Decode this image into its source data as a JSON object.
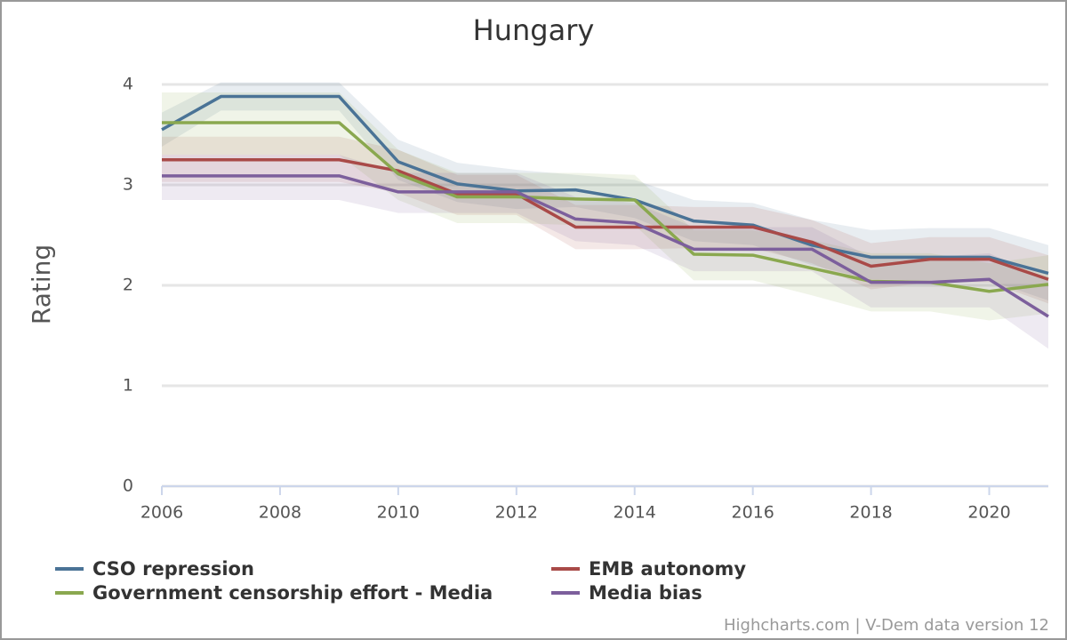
{
  "chart_data": {
    "type": "line",
    "title": "Hungary",
    "y_label": "Rating",
    "credits": "Highcharts.com | V-Dem data version 12",
    "x": [
      2006,
      2007,
      2008,
      2009,
      2010,
      2011,
      2012,
      2013,
      2014,
      2015,
      2016,
      2017,
      2018,
      2019,
      2020,
      2021
    ],
    "xlim": [
      2006,
      2021
    ],
    "xticks": [
      2006,
      2008,
      2010,
      2012,
      2014,
      2016,
      2018,
      2020
    ],
    "ylim": [
      0,
      4
    ],
    "yticks": [
      0,
      1,
      2,
      3,
      4
    ],
    "grid": true,
    "series": [
      {
        "name": "CSO repression",
        "color": "#4a7396",
        "values": [
          3.55,
          3.88,
          3.88,
          3.88,
          3.23,
          3.01,
          2.94,
          2.95,
          2.85,
          2.64,
          2.6,
          2.4,
          2.28,
          2.28,
          2.28,
          2.12
        ],
        "high": [
          3.72,
          4.02,
          4.02,
          4.02,
          3.45,
          3.22,
          3.15,
          3.1,
          3.05,
          2.85,
          2.82,
          2.65,
          2.55,
          2.57,
          2.57,
          2.4
        ],
        "low": [
          3.38,
          3.74,
          3.74,
          3.74,
          3.05,
          2.83,
          2.76,
          2.78,
          2.67,
          2.44,
          2.4,
          2.2,
          2.06,
          2.05,
          2.05,
          1.85
        ]
      },
      {
        "name": "EMB autonomy",
        "color": "#a94a48",
        "values": [
          3.25,
          3.25,
          3.25,
          3.25,
          3.14,
          2.91,
          2.91,
          2.58,
          2.58,
          2.58,
          2.58,
          2.43,
          2.19,
          2.26,
          2.26,
          2.06
        ],
        "high": [
          3.48,
          3.48,
          3.48,
          3.48,
          3.35,
          3.1,
          3.1,
          2.8,
          2.8,
          2.78,
          2.78,
          2.65,
          2.42,
          2.48,
          2.48,
          2.3
        ],
        "low": [
          3.03,
          3.03,
          3.03,
          3.03,
          2.92,
          2.7,
          2.7,
          2.36,
          2.36,
          2.37,
          2.37,
          2.22,
          1.96,
          2.03,
          2.03,
          1.82
        ]
      },
      {
        "name": "Government censorship effort - Media",
        "color": "#8aa84f",
        "values": [
          3.62,
          3.62,
          3.62,
          3.62,
          3.11,
          2.88,
          2.88,
          2.86,
          2.85,
          2.31,
          2.3,
          2.17,
          2.04,
          2.03,
          1.94,
          2.01
        ],
        "high": [
          3.92,
          3.92,
          3.92,
          3.92,
          3.35,
          3.12,
          3.12,
          3.12,
          3.1,
          2.55,
          2.55,
          2.45,
          2.32,
          2.32,
          2.22,
          2.3
        ],
        "low": [
          3.3,
          3.3,
          3.3,
          3.3,
          2.85,
          2.62,
          2.62,
          2.6,
          2.6,
          2.05,
          2.05,
          1.9,
          1.74,
          1.74,
          1.65,
          1.72
        ]
      },
      {
        "name": "Media bias",
        "color": "#7c5f9c",
        "values": [
          3.09,
          3.09,
          3.09,
          3.09,
          2.93,
          2.93,
          2.93,
          2.66,
          2.62,
          2.36,
          2.36,
          2.36,
          2.03,
          2.03,
          2.06,
          1.69
        ],
        "high": [
          3.3,
          3.3,
          3.3,
          3.3,
          3.12,
          3.12,
          3.12,
          2.88,
          2.82,
          2.58,
          2.58,
          2.58,
          2.28,
          2.28,
          2.32,
          2.05
        ],
        "low": [
          2.85,
          2.85,
          2.85,
          2.85,
          2.72,
          2.72,
          2.72,
          2.44,
          2.4,
          2.14,
          2.14,
          2.14,
          1.78,
          1.78,
          1.78,
          1.37
        ]
      }
    ]
  }
}
